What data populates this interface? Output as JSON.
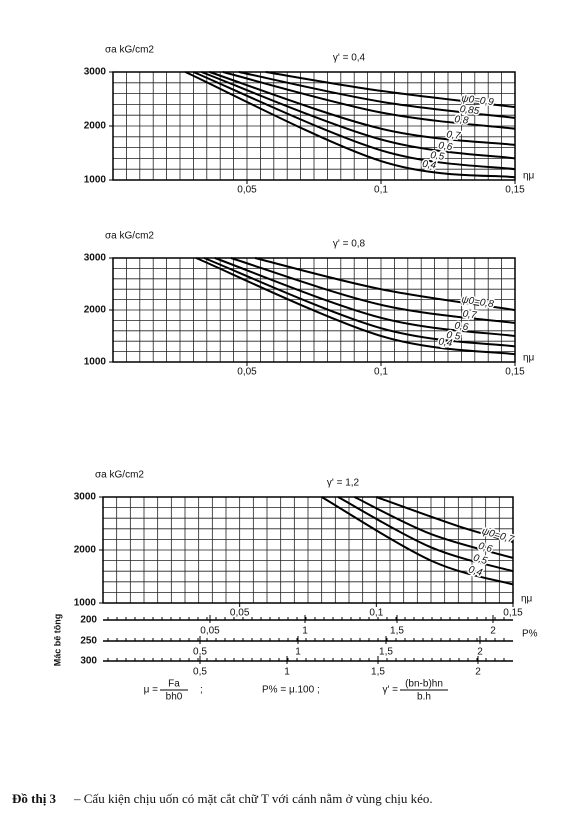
{
  "chart_data": [
    {
      "type": "line",
      "title": "γ' = 0,4",
      "ylabel": "σa kG/cm2",
      "xlabel": "ημ",
      "xlim": [
        0,
        0.15
      ],
      "ylim": [
        1000,
        3000
      ],
      "grid": true,
      "xticks": [
        {
          "value": 0.05,
          "label": "0,05"
        },
        {
          "value": 0.1,
          "label": "0,1"
        },
        {
          "value": 0.15,
          "label": "0,15"
        }
      ],
      "yticks": [
        1000,
        2000,
        3000
      ],
      "series": [
        {
          "name": "ψ0=0,9",
          "color": "#000000",
          "x": [
            0.057,
            0.1,
            0.15
          ],
          "values": [
            3000,
            2650,
            2350
          ]
        },
        {
          "name": "0,85",
          "color": "#000000",
          "x": [
            0.047,
            0.1,
            0.15
          ],
          "values": [
            3000,
            2450,
            2150
          ]
        },
        {
          "name": "0,8",
          "color": "#000000",
          "x": [
            0.041,
            0.1,
            0.15
          ],
          "values": [
            3000,
            2250,
            1950
          ]
        },
        {
          "name": "0,7",
          "color": "#000000",
          "x": [
            0.036,
            0.1,
            0.15
          ],
          "values": [
            3000,
            1950,
            1650
          ]
        },
        {
          "name": "0,6",
          "color": "#000000",
          "x": [
            0.033,
            0.1,
            0.15
          ],
          "values": [
            3000,
            1750,
            1400
          ]
        },
        {
          "name": "0,5",
          "color": "#000000",
          "x": [
            0.03,
            0.1,
            0.15
          ],
          "values": [
            3000,
            1550,
            1200
          ]
        },
        {
          "name": "0,4",
          "color": "#000000",
          "x": [
            0.027,
            0.1,
            0.15
          ],
          "values": [
            3000,
            1350,
            1050
          ]
        }
      ]
    },
    {
      "type": "line",
      "title": "γ' = 0,8",
      "ylabel": "σa kG/cm2",
      "xlabel": "ημ",
      "xlim": [
        0,
        0.15
      ],
      "ylim": [
        1000,
        3000
      ],
      "grid": true,
      "xticks": [
        {
          "value": 0.05,
          "label": "0,05"
        },
        {
          "value": 0.1,
          "label": "0,1"
        },
        {
          "value": 0.15,
          "label": "0,15"
        }
      ],
      "yticks": [
        1000,
        2000,
        3000
      ],
      "series": [
        {
          "name": "ψ0=0,8",
          "color": "#000000",
          "x": [
            0.053,
            0.1,
            0.15
          ],
          "values": [
            3000,
            2400,
            2000
          ]
        },
        {
          "name": "0,7",
          "color": "#000000",
          "x": [
            0.044,
            0.1,
            0.15
          ],
          "values": [
            3000,
            2100,
            1750
          ]
        },
        {
          "name": "0,6",
          "color": "#000000",
          "x": [
            0.038,
            0.1,
            0.15
          ],
          "values": [
            3000,
            1850,
            1500
          ]
        },
        {
          "name": "0,5",
          "color": "#000000",
          "x": [
            0.034,
            0.1,
            0.15
          ],
          "values": [
            3000,
            1650,
            1300
          ]
        },
        {
          "name": "0,4",
          "color": "#000000",
          "x": [
            0.031,
            0.1,
            0.15
          ],
          "values": [
            3000,
            1500,
            1150
          ]
        }
      ]
    },
    {
      "type": "line",
      "title": "γ' = 1,2",
      "ylabel": "σa kG/cm2",
      "xlabel": "ημ",
      "xlim": [
        0,
        0.15
      ],
      "ylim": [
        1000,
        3000
      ],
      "grid": true,
      "xticks": [
        {
          "value": 0.05,
          "label": "0,05"
        },
        {
          "value": 0.1,
          "label": "0,1"
        },
        {
          "value": 0.15,
          "label": "0,15"
        }
      ],
      "yticks": [
        1000,
        2000,
        3000
      ],
      "series": [
        {
          "name": "ψ0=0,7",
          "color": "#000000",
          "x": [
            0.1,
            0.13,
            0.15
          ],
          "values": [
            3000,
            2450,
            2150
          ]
        },
        {
          "name": "0,6",
          "color": "#000000",
          "x": [
            0.092,
            0.12,
            0.15
          ],
          "values": [
            3000,
            2300,
            1850
          ]
        },
        {
          "name": "0,5",
          "color": "#000000",
          "x": [
            0.086,
            0.12,
            0.15
          ],
          "values": [
            3000,
            2050,
            1600
          ]
        },
        {
          "name": "0,4",
          "color": "#000000",
          "x": [
            0.08,
            0.12,
            0.15
          ],
          "values": [
            3000,
            1800,
            1350
          ]
        }
      ]
    }
  ],
  "scales": {
    "title": "Mác bê tông",
    "unit": "P%",
    "rows": [
      {
        "grade": "200",
        "ticks": [
          "0,05",
          "1",
          "1,5",
          "2"
        ]
      },
      {
        "grade": "250",
        "ticks": [
          "0,5",
          "1",
          "1,5",
          "2"
        ]
      },
      {
        "grade": "300",
        "ticks": [
          "0,5",
          "1",
          "1,5",
          "2"
        ]
      }
    ]
  },
  "formulas": [
    {
      "lhs": "μ =",
      "num": "Fa",
      "den": "bh0",
      "tail": ";"
    },
    {
      "text": "P% = μ.100 ;"
    },
    {
      "lhs": "γ' =",
      "num": "(bn-b)hn",
      "den": "b.h"
    }
  ],
  "caption": {
    "label": "Đồ thị 3",
    "text": "– Cấu kiện chịu uốn có mặt cắt chữ T với cánh nằm ở vùng chịu kéo."
  }
}
